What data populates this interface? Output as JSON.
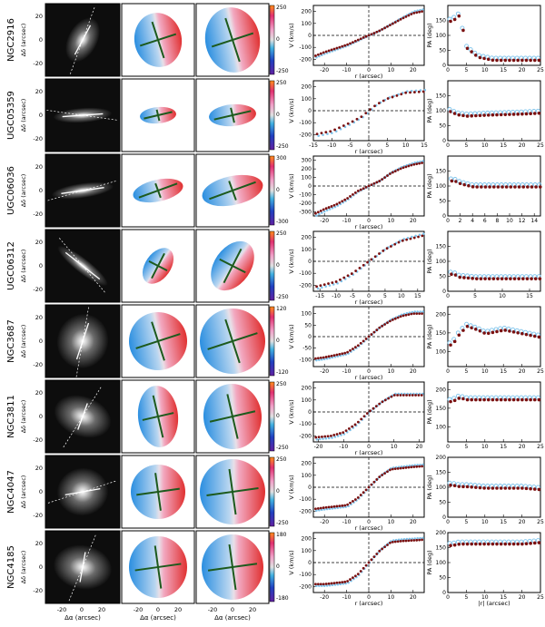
{
  "figure": {
    "axis_labels": {
      "dec": "Δδ (arcsec)",
      "ra": "Δα (arcsec)",
      "velocity": "V (km/s)",
      "radius": "r (arcsec)",
      "pa": "PA (deg)",
      "abs_radius": "|r| (arcsec)"
    },
    "image_x_ticks": [
      "-20",
      "0",
      "20"
    ],
    "image_y_ticks": [
      "20",
      "0",
      "-20"
    ],
    "colors": {
      "approaching": "#2a8ee0",
      "receding": "#e03030",
      "data_dark": "#7a1010",
      "data_light": "#7fc4ec",
      "pv_line": "#1d5a1d"
    }
  },
  "rows": [
    {
      "galaxy": "NGC2916",
      "colorbar": [
        "250",
        "0",
        "-250"
      ],
      "rc": {
        "xticks": [
          "-20",
          "-10",
          "0",
          "10",
          "20"
        ],
        "yticks": [
          "200",
          "100",
          "0",
          "-100",
          "-200"
        ],
        "xlim": [
          -25,
          25
        ],
        "ylim": [
          -250,
          250
        ]
      },
      "pa": {
        "xticks": [
          "0",
          "5",
          "10",
          "15",
          "20",
          "25"
        ],
        "yticks": [
          "150",
          "100",
          "50",
          "0"
        ],
        "xlim": [
          0,
          25
        ],
        "ylim": [
          0,
          200
        ]
      }
    },
    {
      "galaxy": "UGC05359",
      "colorbar": [
        "250",
        "0",
        "-250"
      ],
      "rc": {
        "xticks": [
          "-15",
          "-10",
          "-5",
          "0",
          "5",
          "10",
          "15"
        ],
        "yticks": [
          "200",
          "100",
          "0",
          "-100",
          "-200"
        ],
        "xlim": [
          -15,
          15
        ],
        "ylim": [
          -250,
          250
        ]
      },
      "pa": {
        "xticks": [
          "0",
          "5",
          "10",
          "15",
          "20",
          "25"
        ],
        "yticks": [
          "150",
          "100",
          "50",
          "0"
        ],
        "xlim": [
          0,
          25
        ],
        "ylim": [
          0,
          200
        ]
      }
    },
    {
      "galaxy": "UGC06036",
      "colorbar": [
        "300",
        "0",
        "-300"
      ],
      "rc": {
        "xticks": [
          "-20",
          "-10",
          "0",
          "10",
          "20"
        ],
        "yticks": [
          "300",
          "200",
          "100",
          "0",
          "-100",
          "-200",
          "-300"
        ],
        "xlim": [
          -25,
          25
        ],
        "ylim": [
          -350,
          350
        ]
      },
      "pa": {
        "xticks": [
          "0",
          "2",
          "4",
          "6",
          "8",
          "10",
          "12",
          "14"
        ],
        "yticks": [
          "150",
          "100",
          "50",
          "0"
        ],
        "xlim": [
          0,
          15
        ],
        "ylim": [
          0,
          200
        ]
      }
    },
    {
      "galaxy": "UGC06312",
      "colorbar": [
        "250",
        "0",
        "-250"
      ],
      "rc": {
        "xticks": [
          "-15",
          "-10",
          "-5",
          "0",
          "5",
          "10",
          "15"
        ],
        "yticks": [
          "200",
          "100",
          "0",
          "-100",
          "-200"
        ],
        "xlim": [
          -17,
          17
        ],
        "ylim": [
          -250,
          250
        ]
      },
      "pa": {
        "xticks": [
          "0",
          "5",
          "10",
          "15"
        ],
        "yticks": [
          "150",
          "100",
          "50",
          "0"
        ],
        "xlim": [
          0,
          17
        ],
        "ylim": [
          0,
          200
        ]
      }
    },
    {
      "galaxy": "NGC3687",
      "colorbar": [
        "120",
        "0",
        "-120"
      ],
      "rc": {
        "xticks": [
          "-20",
          "-10",
          "0",
          "10",
          "20"
        ],
        "yticks": [
          "100",
          "50",
          "0",
          "-50",
          "-100"
        ],
        "xlim": [
          -25,
          25
        ],
        "ylim": [
          -130,
          130
        ]
      },
      "pa": {
        "xticks": [
          "0",
          "5",
          "10",
          "15",
          "20",
          "25"
        ],
        "yticks": [
          "200",
          "150",
          "100"
        ],
        "xlim": [
          0,
          25
        ],
        "ylim": [
          60,
          220
        ]
      }
    },
    {
      "galaxy": "NGC3811",
      "colorbar": [
        "250",
        "0",
        "-250"
      ],
      "rc": {
        "xticks": [
          "-20",
          "-10",
          "0",
          "10",
          "20"
        ],
        "yticks": [
          "200",
          "100",
          "0",
          "-100",
          "-200"
        ],
        "xlim": [
          -22,
          22
        ],
        "ylim": [
          -250,
          250
        ]
      },
      "pa": {
        "xticks": [
          "0",
          "5",
          "10",
          "15",
          "20",
          "25"
        ],
        "yticks": [
          "200",
          "150",
          "100"
        ],
        "xlim": [
          0,
          25
        ],
        "ylim": [
          60,
          220
        ]
      }
    },
    {
      "galaxy": "NGC4047",
      "colorbar": [
        "250",
        "0",
        "-250"
      ],
      "rc": {
        "xticks": [
          "-20",
          "-10",
          "0",
          "10",
          "20"
        ],
        "yticks": [
          "200",
          "100",
          "0",
          "-100",
          "-200"
        ],
        "xlim": [
          -25,
          25
        ],
        "ylim": [
          -250,
          250
        ]
      },
      "pa": {
        "xticks": [
          "0",
          "5",
          "10",
          "15",
          "20",
          "25"
        ],
        "yticks": [
          "200",
          "150",
          "100",
          "50",
          "0"
        ],
        "xlim": [
          0,
          25
        ],
        "ylim": [
          0,
          200
        ]
      }
    },
    {
      "galaxy": "NGC4185",
      "colorbar": [
        "180",
        "0",
        "-180"
      ],
      "rc": {
        "xticks": [
          "-20",
          "-10",
          "0",
          "10",
          "20"
        ],
        "yticks": [
          "200",
          "100",
          "0",
          "-100",
          "-200"
        ],
        "xlim": [
          -25,
          25
        ],
        "ylim": [
          -250,
          250
        ]
      },
      "pa": {
        "xticks": [
          "0",
          "5",
          "10",
          "15",
          "20",
          "25"
        ],
        "yticks": [
          "200",
          "150",
          "100",
          "50",
          "0"
        ],
        "xlim": [
          0,
          25
        ],
        "ylim": [
          0,
          200
        ]
      }
    }
  ],
  "chart_data": [
    {
      "type": "scatter",
      "panel": "rotation_curves",
      "xlabel": "r (arcsec)",
      "ylabel": "V (km/s)",
      "series": [
        {
          "galaxy": "NGC2916",
          "r": [
            -24,
            -20,
            -15,
            -10,
            -5,
            -2,
            0,
            2,
            5,
            10,
            15,
            20,
            24
          ],
          "v": [
            -170,
            -140,
            -110,
            -80,
            -40,
            -15,
            0,
            15,
            40,
            90,
            140,
            185,
            200
          ]
        },
        {
          "galaxy": "UGC05359",
          "r": [
            -15,
            -10,
            -5,
            -2,
            0,
            2,
            5,
            10,
            15
          ],
          "v": [
            -200,
            -170,
            -100,
            -50,
            0,
            50,
            100,
            150,
            160
          ]
        },
        {
          "galaxy": "UGC06036",
          "r": [
            -24,
            -20,
            -15,
            -10,
            -5,
            0,
            5,
            10,
            15,
            20,
            24
          ],
          "v": [
            -320,
            -270,
            -220,
            -150,
            -60,
            0,
            60,
            150,
            210,
            250,
            270
          ]
        },
        {
          "galaxy": "UGC06312",
          "r": [
            -16,
            -10,
            -5,
            0,
            5,
            10,
            16
          ],
          "v": [
            -210,
            -170,
            -100,
            0,
            100,
            170,
            210
          ]
        },
        {
          "galaxy": "NGC3687",
          "r": [
            -24,
            -20,
            -10,
            -5,
            0,
            5,
            10,
            15,
            20,
            24
          ],
          "v": [
            -95,
            -90,
            -70,
            -40,
            0,
            40,
            70,
            90,
            100,
            100
          ]
        },
        {
          "galaxy": "NGC3811",
          "r": [
            -20,
            -15,
            -10,
            -5,
            0,
            5,
            10,
            15,
            20
          ],
          "v": [
            -210,
            -200,
            -170,
            -100,
            0,
            80,
            140,
            140,
            140
          ]
        },
        {
          "galaxy": "NGC4047",
          "r": [
            -24,
            -20,
            -10,
            -5,
            0,
            5,
            10,
            15,
            20,
            24
          ],
          "v": [
            -180,
            -170,
            -150,
            -90,
            0,
            90,
            150,
            160,
            170,
            175
          ]
        },
        {
          "galaxy": "NGC4185",
          "r": [
            -24,
            -20,
            -10,
            -5,
            0,
            5,
            10,
            15,
            20,
            24
          ],
          "v": [
            -180,
            -180,
            -160,
            -100,
            0,
            100,
            170,
            180,
            185,
            190
          ]
        }
      ]
    },
    {
      "type": "scatter",
      "panel": "position_angles",
      "xlabel": "|r| (arcsec)",
      "ylabel": "PA (deg)",
      "series": [
        {
          "galaxy": "NGC2916",
          "r": [
            1,
            2,
            3,
            5,
            8,
            10,
            12,
            15,
            20,
            25
          ],
          "pa": [
            150,
            160,
            170,
            60,
            30,
            25,
            20,
            20,
            20,
            20
          ]
        },
        {
          "galaxy": "UGC05359",
          "r": [
            1,
            2,
            5,
            10,
            15,
            20,
            25
          ],
          "pa": [
            100,
            90,
            85,
            88,
            90,
            92,
            95
          ]
        },
        {
          "galaxy": "UGC06036",
          "r": [
            1,
            2,
            4,
            6,
            8,
            10,
            12,
            14
          ],
          "pa": [
            120,
            110,
            100,
            100,
            100,
            100,
            100,
            100
          ]
        },
        {
          "galaxy": "UGC06312",
          "r": [
            1,
            2,
            5,
            10,
            15,
            17
          ],
          "pa": [
            60,
            50,
            45,
            45,
            45,
            45
          ]
        },
        {
          "galaxy": "NGC3687",
          "r": [
            1,
            3,
            5,
            8,
            10,
            15,
            20,
            25
          ],
          "pa": [
            120,
            150,
            170,
            160,
            150,
            160,
            150,
            140
          ]
        },
        {
          "galaxy": "NGC3811",
          "r": [
            1,
            3,
            5,
            10,
            15,
            20,
            25
          ],
          "pa": [
            170,
            180,
            175,
            175,
            175,
            175,
            175
          ]
        },
        {
          "galaxy": "NGC4047",
          "r": [
            1,
            3,
            5,
            10,
            15,
            20,
            25
          ],
          "pa": [
            110,
            105,
            105,
            100,
            100,
            100,
            95
          ]
        },
        {
          "galaxy": "NGC4185",
          "r": [
            1,
            3,
            5,
            10,
            15,
            20,
            25
          ],
          "pa": [
            160,
            165,
            165,
            165,
            165,
            165,
            170
          ]
        }
      ]
    }
  ]
}
